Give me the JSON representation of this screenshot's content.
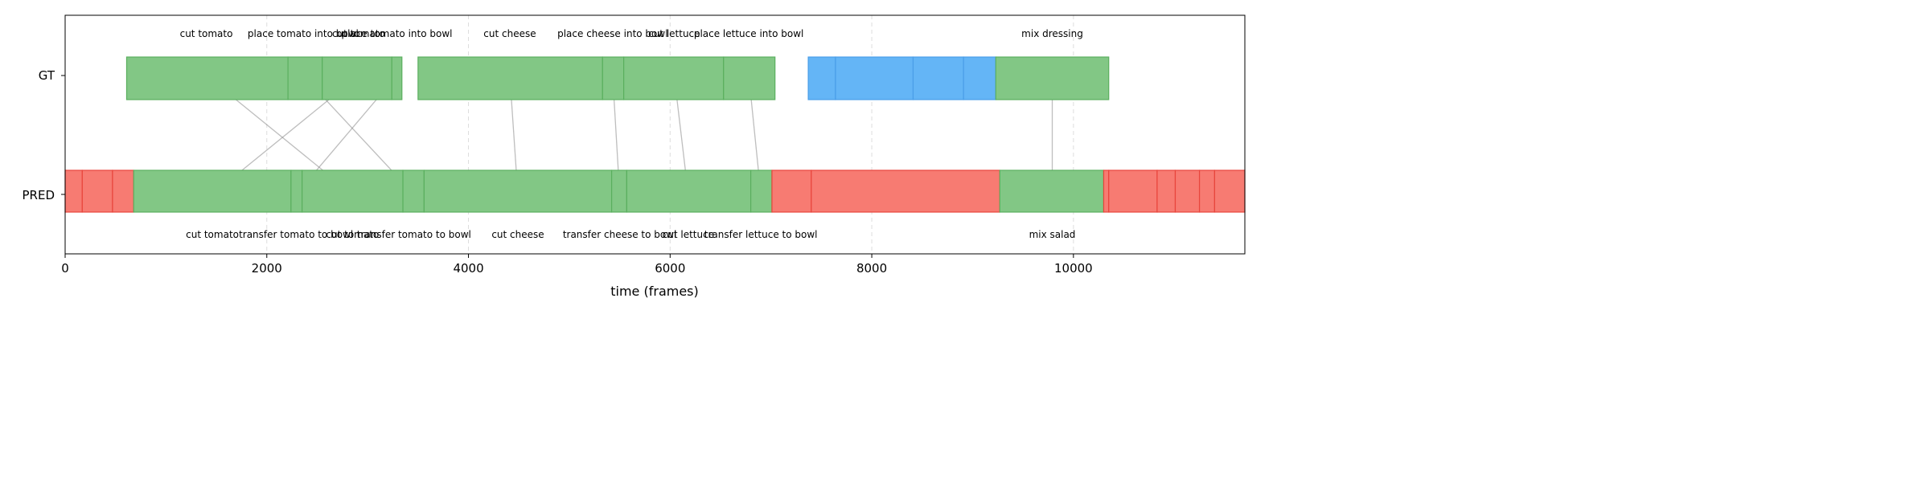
{
  "chart_data": {
    "type": "timeline",
    "xlabel": "time (frames)",
    "xlim": [
      0,
      11700
    ],
    "xticks": [
      0,
      2000,
      4000,
      6000,
      8000,
      10000
    ],
    "grid": "vertical dashed",
    "rows": [
      "GT",
      "PRED"
    ],
    "colors": {
      "correct": "#82c785",
      "correct_edge": "#5aaf5e",
      "missed": "#64b5f6",
      "missed_edge": "#4a9ee8",
      "wrong": "#f77b72",
      "wrong_edge": "#e8453c",
      "link": "#b0b0b0",
      "grid": "#dddddd"
    },
    "gt_segments": [
      {
        "start": 610,
        "end": 2210,
        "status": "correct"
      },
      {
        "start": 2210,
        "end": 2550,
        "status": "correct"
      },
      {
        "start": 2550,
        "end": 3240,
        "status": "correct"
      },
      {
        "start": 3240,
        "end": 3340,
        "status": "correct"
      },
      {
        "start": 3500,
        "end": 5330,
        "status": "correct"
      },
      {
        "start": 5330,
        "end": 5540,
        "status": "correct"
      },
      {
        "start": 5540,
        "end": 6530,
        "status": "correct"
      },
      {
        "start": 6530,
        "end": 7040,
        "status": "correct"
      },
      {
        "start": 7370,
        "end": 7640,
        "status": "missed"
      },
      {
        "start": 7640,
        "end": 8410,
        "status": "missed"
      },
      {
        "start": 8410,
        "end": 8910,
        "status": "missed"
      },
      {
        "start": 8910,
        "end": 9230,
        "status": "missed"
      },
      {
        "start": 9230,
        "end": 10350,
        "status": "correct"
      }
    ],
    "pred_segments": [
      {
        "start": 0,
        "end": 170,
        "status": "wrong"
      },
      {
        "start": 170,
        "end": 470,
        "status": "wrong"
      },
      {
        "start": 470,
        "end": 680,
        "status": "wrong"
      },
      {
        "start": 680,
        "end": 2240,
        "status": "correct"
      },
      {
        "start": 2240,
        "end": 2350,
        "status": "correct"
      },
      {
        "start": 2350,
        "end": 3350,
        "status": "correct"
      },
      {
        "start": 3350,
        "end": 3560,
        "status": "correct"
      },
      {
        "start": 3560,
        "end": 5420,
        "status": "correct"
      },
      {
        "start": 5420,
        "end": 5570,
        "status": "correct"
      },
      {
        "start": 5570,
        "end": 6800,
        "status": "correct"
      },
      {
        "start": 6800,
        "end": 7010,
        "status": "correct"
      },
      {
        "start": 7010,
        "end": 7400,
        "status": "wrong"
      },
      {
        "start": 7400,
        "end": 9270,
        "status": "wrong"
      },
      {
        "start": 9270,
        "end": 10300,
        "status": "correct"
      },
      {
        "start": 10300,
        "end": 10350,
        "status": "wrong"
      },
      {
        "start": 10350,
        "end": 10830,
        "status": "wrong"
      },
      {
        "start": 10830,
        "end": 11010,
        "status": "wrong"
      },
      {
        "start": 11010,
        "end": 11250,
        "status": "wrong"
      },
      {
        "start": 11250,
        "end": 11400,
        "status": "wrong"
      },
      {
        "start": 11400,
        "end": 11700,
        "status": "wrong"
      }
    ],
    "gt_labels": [
      {
        "x": 1400,
        "text": "cut tomato"
      },
      {
        "x": 2360,
        "text": "place tomato into bowl"
      },
      {
        "x": 2910,
        "text": "cut tomato"
      },
      {
        "x": 3290,
        "text": "place tomato into bowl"
      },
      {
        "x": 4410,
        "text": "cut cheese"
      },
      {
        "x": 5430,
        "text": "place cheese into bowl"
      },
      {
        "x": 6040,
        "text": "cut lettuce"
      },
      {
        "x": 6780,
        "text": "place lettuce into bowl"
      },
      {
        "x": 9790,
        "text": "mix dressing"
      }
    ],
    "pred_labels": [
      {
        "x": 1460,
        "text": "cut tomato"
      },
      {
        "x": 2290,
        "text": "transfer tomato to bowl"
      },
      {
        "x": 2850,
        "text": "cut tomato"
      },
      {
        "x": 3460,
        "text": "transfer tomato to bowl"
      },
      {
        "x": 4490,
        "text": "cut cheese"
      },
      {
        "x": 5500,
        "text": "transfer cheese to bowl"
      },
      {
        "x": 6180,
        "text": "cut lettuce"
      },
      {
        "x": 6900,
        "text": "transfer lettuce to bowl"
      },
      {
        "x": 9790,
        "text": "mix salad"
      }
    ],
    "links": [
      {
        "gt": 1400,
        "pred": 2850
      },
      {
        "gt": 2360,
        "pred": 3460
      },
      {
        "gt": 2910,
        "pred": 1460
      },
      {
        "gt": 3290,
        "pred": 2290
      },
      {
        "gt": 4410,
        "pred": 4490
      },
      {
        "gt": 5430,
        "pred": 5500
      },
      {
        "gt": 6040,
        "pred": 6180
      },
      {
        "gt": 6780,
        "pred": 6900
      },
      {
        "gt": 9790,
        "pred": 9790
      }
    ]
  }
}
